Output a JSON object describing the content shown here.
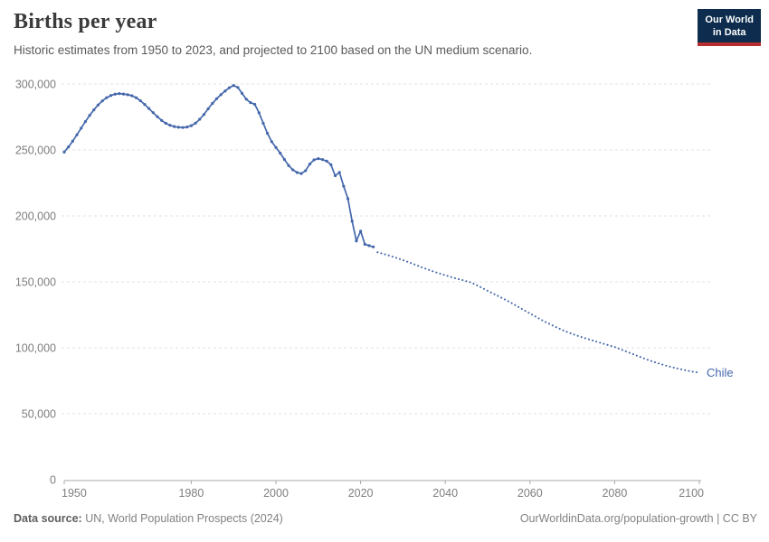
{
  "header": {
    "title": "Births per year",
    "subtitle": "Historic estimates from 1950 to 2023, and projected to 2100 based on the UN medium scenario.",
    "logo": {
      "line1": "Our World",
      "line2": "in Data",
      "bg_color": "#0d2c4e",
      "accent_color": "#b62e2e"
    }
  },
  "footer": {
    "source_label": "Data source:",
    "source_text": " UN, World Population Prospects (2024)",
    "attribution": "OurWorldinData.org/population-growth | CC BY"
  },
  "chart_data": {
    "type": "line",
    "title": "Births per year",
    "entity_label": "Chile",
    "line_color": "#4467ab",
    "grid": true,
    "legend_position": "end-of-line",
    "xlim": [
      1950,
      2100
    ],
    "ylim": [
      0,
      300000
    ],
    "x_ticks": [
      1950,
      1980,
      2000,
      2020,
      2040,
      2060,
      2080,
      2100
    ],
    "y_ticks": [
      0,
      50000,
      100000,
      150000,
      200000,
      250000,
      300000
    ],
    "series": [
      {
        "name": "Historic estimates (1950-2023)",
        "style": "solid",
        "markers": true,
        "points": [
          [
            1950,
            248400
          ],
          [
            1951,
            252300
          ],
          [
            1952,
            256700
          ],
          [
            1953,
            261500
          ],
          [
            1954,
            266500
          ],
          [
            1955,
            271500
          ],
          [
            1956,
            276200
          ],
          [
            1957,
            280400
          ],
          [
            1958,
            284100
          ],
          [
            1959,
            287200
          ],
          [
            1960,
            289600
          ],
          [
            1961,
            291300
          ],
          [
            1962,
            292300
          ],
          [
            1963,
            292700
          ],
          [
            1964,
            292400
          ],
          [
            1965,
            291900
          ],
          [
            1966,
            291100
          ],
          [
            1967,
            289600
          ],
          [
            1968,
            287300
          ],
          [
            1969,
            284500
          ],
          [
            1970,
            281400
          ],
          [
            1971,
            278300
          ],
          [
            1972,
            275200
          ],
          [
            1973,
            272400
          ],
          [
            1974,
            270200
          ],
          [
            1975,
            268700
          ],
          [
            1976,
            267700
          ],
          [
            1977,
            267200
          ],
          [
            1978,
            267000
          ],
          [
            1979,
            267400
          ],
          [
            1980,
            268400
          ],
          [
            1981,
            270300
          ],
          [
            1982,
            273300
          ],
          [
            1983,
            276900
          ],
          [
            1984,
            281200
          ],
          [
            1985,
            285300
          ],
          [
            1986,
            288900
          ],
          [
            1987,
            291900
          ],
          [
            1988,
            294700
          ],
          [
            1989,
            297200
          ],
          [
            1990,
            298900
          ],
          [
            1991,
            297400
          ],
          [
            1992,
            292900
          ],
          [
            1993,
            288500
          ],
          [
            1994,
            285900
          ],
          [
            1995,
            284600
          ],
          [
            1996,
            278200
          ],
          [
            1997,
            270300
          ],
          [
            1998,
            262600
          ],
          [
            1999,
            256300
          ],
          [
            2000,
            251900
          ],
          [
            2001,
            247600
          ],
          [
            2002,
            242800
          ],
          [
            2003,
            238200
          ],
          [
            2004,
            234900
          ],
          [
            2005,
            232900
          ],
          [
            2006,
            232100
          ],
          [
            2007,
            234300
          ],
          [
            2008,
            239300
          ],
          [
            2009,
            242500
          ],
          [
            2010,
            243400
          ],
          [
            2011,
            242700
          ],
          [
            2012,
            241500
          ],
          [
            2013,
            238800
          ],
          [
            2014,
            230500
          ],
          [
            2015,
            233000
          ],
          [
            2016,
            222500
          ],
          [
            2017,
            213000
          ],
          [
            2018,
            196000
          ],
          [
            2019,
            181000
          ],
          [
            2020,
            188500
          ],
          [
            2021,
            178500
          ],
          [
            2022,
            177500
          ],
          [
            2023,
            176500
          ]
        ]
      },
      {
        "name": "UN medium scenario projection (2024-2100)",
        "style": "dotted",
        "markers": false,
        "points": [
          [
            2024,
            172500
          ],
          [
            2026,
            170600
          ],
          [
            2028,
            168600
          ],
          [
            2030,
            166500
          ],
          [
            2032,
            164100
          ],
          [
            2034,
            161600
          ],
          [
            2036,
            159200
          ],
          [
            2038,
            157000
          ],
          [
            2040,
            155000
          ],
          [
            2042,
            153000
          ],
          [
            2044,
            151400
          ],
          [
            2046,
            149600
          ],
          [
            2048,
            146600
          ],
          [
            2050,
            143200
          ],
          [
            2052,
            140000
          ],
          [
            2054,
            136800
          ],
          [
            2056,
            133300
          ],
          [
            2058,
            129600
          ],
          [
            2060,
            126000
          ],
          [
            2062,
            122400
          ],
          [
            2064,
            119000
          ],
          [
            2066,
            115900
          ],
          [
            2068,
            113000
          ],
          [
            2070,
            110400
          ],
          [
            2072,
            108300
          ],
          [
            2074,
            106300
          ],
          [
            2076,
            104400
          ],
          [
            2078,
            102500
          ],
          [
            2080,
            100600
          ],
          [
            2082,
            98100
          ],
          [
            2084,
            95600
          ],
          [
            2086,
            93100
          ],
          [
            2088,
            90700
          ],
          [
            2090,
            88500
          ],
          [
            2092,
            86600
          ],
          [
            2094,
            84900
          ],
          [
            2096,
            83400
          ],
          [
            2098,
            82100
          ],
          [
            2100,
            81000
          ]
        ]
      }
    ]
  }
}
